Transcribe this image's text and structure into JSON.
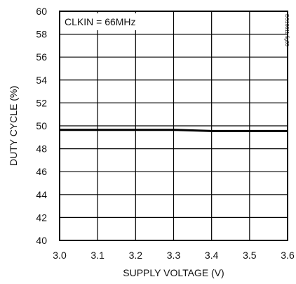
{
  "chart_data": {
    "type": "line",
    "title": "",
    "xlabel": "SUPPLY VOLTAGE (V)",
    "ylabel": "DUTY CYCLE (%)",
    "xlim": [
      3.0,
      3.6
    ],
    "ylim": [
      40,
      60
    ],
    "x_ticks": [
      "3.0",
      "3.1",
      "3.2",
      "3.3",
      "3.4",
      "3.5",
      "3.6"
    ],
    "y_ticks": [
      "40",
      "42",
      "44",
      "46",
      "48",
      "50",
      "52",
      "54",
      "56",
      "58",
      "60"
    ],
    "grid": true,
    "annotation": "CLKIN = 66MHz",
    "side_note": "DS10811 fig05",
    "series": [
      {
        "x": [
          3.0,
          3.1,
          3.2,
          3.3,
          3.35,
          3.4,
          3.5,
          3.6
        ],
        "y": [
          49.65,
          49.65,
          49.65,
          49.65,
          49.6,
          49.55,
          49.55,
          49.55
        ]
      }
    ]
  }
}
